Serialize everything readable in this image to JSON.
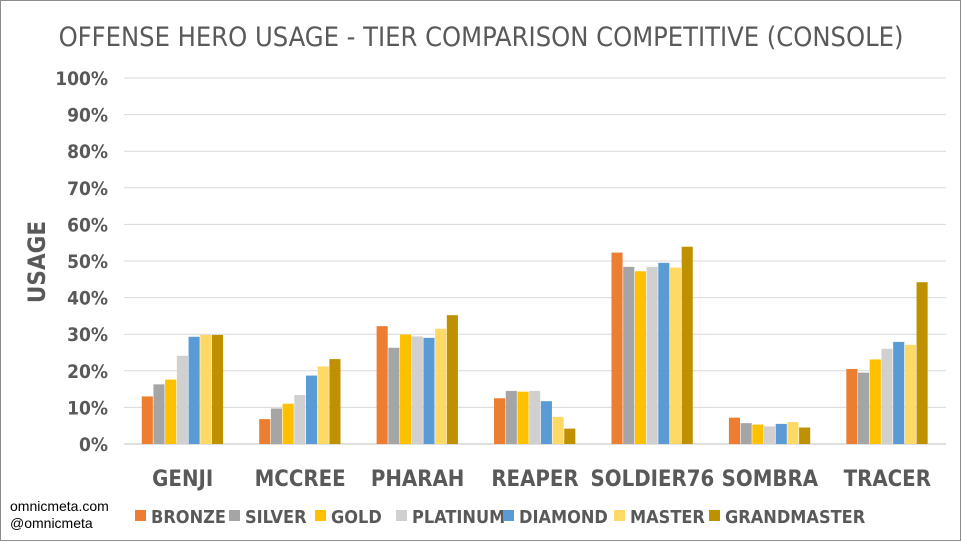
{
  "chart_data": {
    "type": "bar",
    "title": "OFFENSE HERO USAGE - TIER COMPARISON COMPETITIVE (CONSOLE)",
    "ylabel": "USAGE",
    "xlabel": "",
    "ylim": [
      0,
      100
    ],
    "y_ticks": [
      "0%",
      "10%",
      "20%",
      "30%",
      "40%",
      "50%",
      "60%",
      "70%",
      "80%",
      "90%",
      "100%"
    ],
    "grid": true,
    "legend_position": "bottom",
    "categories": [
      "GENJI",
      "MCCREE",
      "PHARAH",
      "REAPER",
      "SOLDIER76",
      "SOMBRA",
      "TRACER"
    ],
    "series": [
      {
        "name": "BRONZE",
        "color": "#ED7D31",
        "values": [
          13,
          6.8,
          32.2,
          12.5,
          52.3,
          7.2,
          20.5
        ]
      },
      {
        "name": "SILVER",
        "color": "#A5A5A5",
        "values": [
          16.3,
          9.7,
          26.3,
          14.5,
          48.4,
          5.7,
          19.5
        ]
      },
      {
        "name": "GOLD",
        "color": "#FFC000",
        "values": [
          17.6,
          11,
          29.9,
          14.3,
          47.2,
          5.3,
          23.1
        ]
      },
      {
        "name": "PLATINUM",
        "color": "#D0D0D0",
        "values": [
          24.1,
          13.4,
          29.4,
          14.5,
          48.4,
          4.8,
          26
        ]
      },
      {
        "name": "DIAMOND",
        "color": "#5B9BD5",
        "values": [
          29.3,
          18.7,
          29,
          11.7,
          49.5,
          5.5,
          27.9
        ]
      },
      {
        "name": "MASTER",
        "color": "#FFD966",
        "values": [
          29.8,
          21.2,
          31.5,
          7.4,
          48.2,
          6,
          27.1
        ]
      },
      {
        "name": "GRANDMASTER",
        "color": "#BF9000",
        "values": [
          29.8,
          23.2,
          35.2,
          4.2,
          53.9,
          4.5,
          44.2
        ]
      }
    ]
  },
  "watermark": {
    "line1": "omnicmeta.com",
    "line2": "@omnicmeta"
  }
}
